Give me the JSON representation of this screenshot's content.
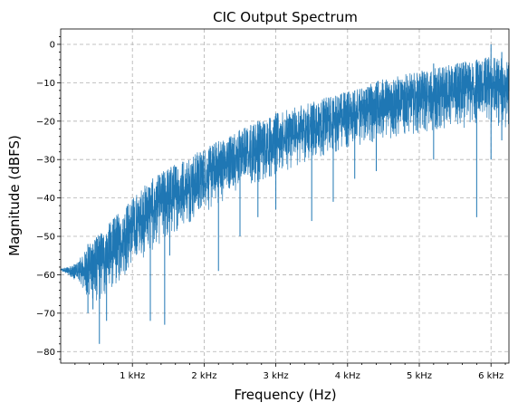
{
  "chart_data": {
    "type": "line",
    "title": "CIC Output Spectrum",
    "xlabel": "Frequency (Hz)",
    "ylabel": "Magnitude (dBFS)",
    "xlim": [
      0,
      6250
    ],
    "ylim": [
      -83,
      4
    ],
    "grid": true,
    "legend": "none",
    "series_color": "#1f77b4",
    "x_ticks": [
      {
        "value": 1000,
        "label": "1 kHz"
      },
      {
        "value": 2000,
        "label": "2 kHz"
      },
      {
        "value": 3000,
        "label": "3 kHz"
      },
      {
        "value": 4000,
        "label": "4 kHz"
      },
      {
        "value": 5000,
        "label": "5 kHz"
      },
      {
        "value": 6000,
        "label": "6 kHz"
      }
    ],
    "y_ticks": [
      {
        "value": 0,
        "label": "0"
      },
      {
        "value": -10,
        "label": "−10"
      },
      {
        "value": -20,
        "label": "−20"
      },
      {
        "value": -30,
        "label": "−30"
      },
      {
        "value": -40,
        "label": "−40"
      },
      {
        "value": -50,
        "label": "−50"
      },
      {
        "value": -60,
        "label": "−60"
      },
      {
        "value": -70,
        "label": "−70"
      },
      {
        "value": -80,
        "label": "−80"
      }
    ],
    "series": [
      {
        "envelope": {
          "x": [
            0,
            100,
            200,
            300,
            400,
            500,
            600,
            800,
            1000,
            1200,
            1500,
            2000,
            2500,
            3000,
            3500,
            4000,
            4500,
            5000,
            5500,
            6000,
            6250
          ],
          "high": [
            -58.5,
            -58,
            -57,
            -55,
            -52,
            -50,
            -48,
            -44,
            -40,
            -36,
            -32,
            -27,
            -22,
            -18,
            -15,
            -12,
            -9,
            -7,
            -5,
            -3,
            -4
          ],
          "low": [
            -59,
            -60,
            -62,
            -64,
            -66,
            -67,
            -66,
            -62,
            -58,
            -55,
            -50,
            -44,
            -38,
            -34,
            -30,
            -27,
            -25,
            -23,
            -22,
            -21,
            -22
          ]
        },
        "spikes": [
          {
            "x": 380,
            "min": -70,
            "max": -52
          },
          {
            "x": 450,
            "min": -69,
            "max": -52
          },
          {
            "x": 540,
            "min": -78,
            "max": -50
          },
          {
            "x": 640,
            "min": -72,
            "max": -50
          },
          {
            "x": 1250,
            "min": -72,
            "max": -40
          },
          {
            "x": 1450,
            "min": -73,
            "max": -38
          },
          {
            "x": 1520,
            "min": -55,
            "max": -36
          },
          {
            "x": 2200,
            "min": -59,
            "max": -26
          },
          {
            "x": 2500,
            "min": -50,
            "max": -24
          },
          {
            "x": 2750,
            "min": -45,
            "max": -20
          },
          {
            "x": 3000,
            "min": -43,
            "max": -18
          },
          {
            "x": 3500,
            "min": -46,
            "max": -16
          },
          {
            "x": 3800,
            "min": -41,
            "max": -14
          },
          {
            "x": 4100,
            "min": -35,
            "max": -12
          },
          {
            "x": 4400,
            "min": -33,
            "max": -10
          },
          {
            "x": 5200,
            "min": -30,
            "max": -5
          },
          {
            "x": 5800,
            "min": -45,
            "max": -4
          },
          {
            "x": 6000,
            "min": -30,
            "max": 0
          },
          {
            "x": 6150,
            "min": -25,
            "max": -2
          }
        ]
      }
    ]
  }
}
